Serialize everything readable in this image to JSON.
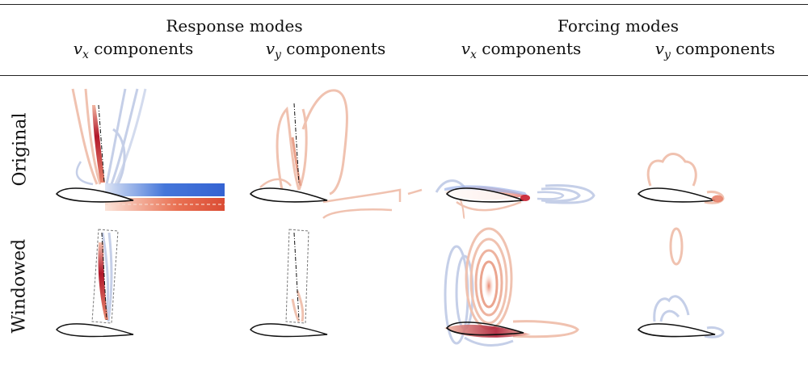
{
  "header": {
    "groups": [
      {
        "label": "Response modes"
      },
      {
        "label": "Forcing modes"
      }
    ],
    "columns": [
      {
        "var": "v",
        "sub": "x",
        "text": " components"
      },
      {
        "var": "v",
        "sub": "y",
        "text": " components"
      },
      {
        "var": "v",
        "sub": "x",
        "text": " components"
      },
      {
        "var": "v",
        "sub": "y",
        "text": " components"
      }
    ]
  },
  "rows": [
    {
      "label": "Original"
    },
    {
      "label": "Windowed"
    }
  ],
  "colors": {
    "red_strong": "#b2182b",
    "red_mid": "#e07a5f",
    "red_light": "#f0c2b0",
    "blue_strong": "#3b6fd8",
    "blue_light": "#c5cfe8",
    "rule": "#222222"
  }
}
